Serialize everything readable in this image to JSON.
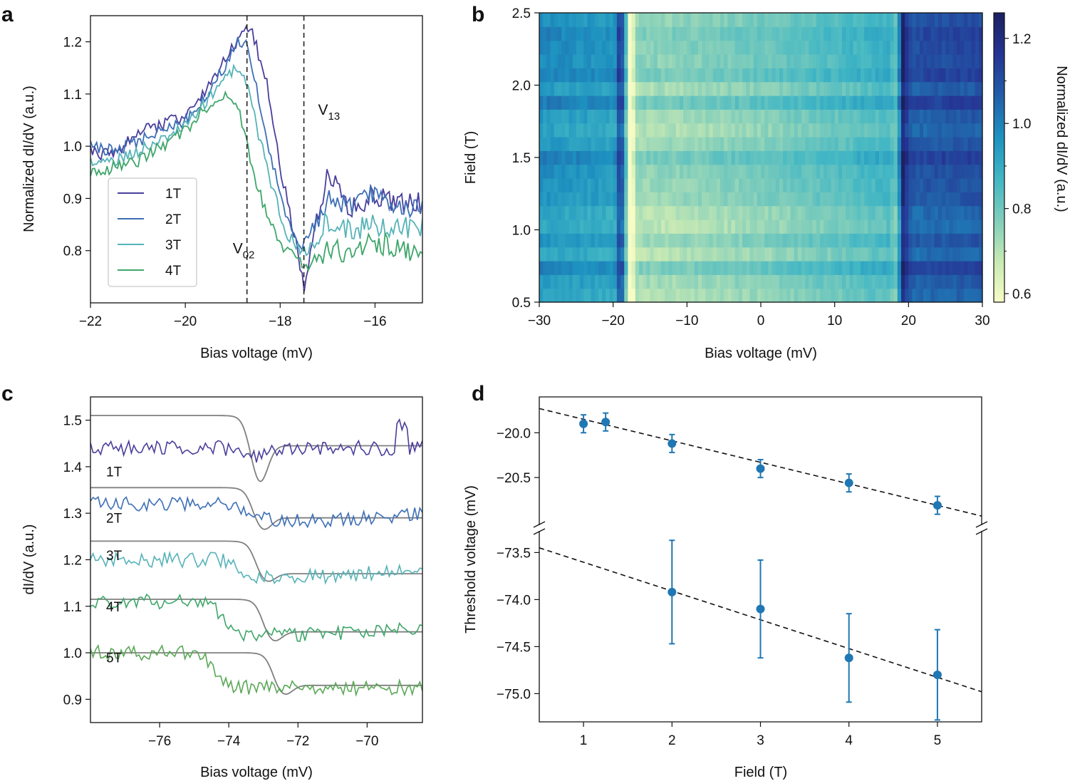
{
  "chart_data": [
    {
      "panel": "a",
      "type": "line",
      "xlabel": "Bias voltage (mV)",
      "ylabel": "Normalized dI/dV (a.u.)",
      "xlim": [
        -22,
        -15
      ],
      "ylim": [
        0.7,
        1.25
      ],
      "xticks": [
        -22,
        -20,
        -18,
        -16
      ],
      "yticks": [
        0.8,
        0.9,
        1.0,
        1.1,
        1.2
      ],
      "vlines": [
        -18.7,
        -17.5
      ],
      "annotations": [
        {
          "main": "V",
          "sub": "02",
          "x": -19.0,
          "y": 0.795
        },
        {
          "main": "V",
          "sub": "13",
          "x": -17.2,
          "y": 1.06
        }
      ],
      "legend": {
        "location": "lower-left",
        "entries": [
          "1T",
          "2T",
          "3T",
          "4T"
        ]
      },
      "series": [
        {
          "name": "1T",
          "color": "#4a3f9c",
          "x": [
            -22,
            -21.5,
            -21,
            -20.5,
            -20,
            -19.6,
            -19.2,
            -18.9,
            -18.7,
            -18.6,
            -18.3,
            -18.0,
            -17.7,
            -17.5,
            -17.3,
            -17.0,
            -16.5,
            -16.0,
            -15.5,
            -15.0
          ],
          "y": [
            0.99,
            0.98,
            1.03,
            1.04,
            1.06,
            1.1,
            1.16,
            1.2,
            1.22,
            1.22,
            1.13,
            0.96,
            0.83,
            0.73,
            0.82,
            0.95,
            0.88,
            0.91,
            0.89,
            0.89
          ]
        },
        {
          "name": "2T",
          "color": "#3d6fb6",
          "x": [
            -22,
            -21.5,
            -21,
            -20.5,
            -20,
            -19.6,
            -19.2,
            -18.9,
            -18.7,
            -18.5,
            -18.2,
            -17.9,
            -17.6,
            -17.4,
            -17.0,
            -16.5,
            -16.0,
            -15.5,
            -15.0
          ],
          "y": [
            1.0,
            0.99,
            1.01,
            1.03,
            1.05,
            1.09,
            1.15,
            1.2,
            1.19,
            1.11,
            0.98,
            0.87,
            0.8,
            0.83,
            0.9,
            0.88,
            0.91,
            0.89,
            0.88
          ]
        },
        {
          "name": "3T",
          "color": "#56b3b8",
          "x": [
            -22,
            -21.5,
            -21,
            -20.5,
            -20,
            -19.6,
            -19.2,
            -18.9,
            -18.7,
            -18.5,
            -18.2,
            -17.9,
            -17.6,
            -17.4,
            -17.0,
            -16.5,
            -16.0,
            -15.5,
            -15.0
          ],
          "y": [
            0.97,
            0.97,
            0.99,
            1.01,
            1.04,
            1.08,
            1.13,
            1.15,
            1.12,
            1.04,
            0.93,
            0.84,
            0.8,
            0.8,
            0.86,
            0.84,
            0.85,
            0.84,
            0.85
          ]
        },
        {
          "name": "4T",
          "color": "#3fa66a",
          "x": [
            -22,
            -21.5,
            -21,
            -20.5,
            -20,
            -19.6,
            -19.2,
            -18.9,
            -18.7,
            -18.5,
            -18.2,
            -17.9,
            -17.6,
            -17.4,
            -17.0,
            -16.5,
            -16.0,
            -15.5,
            -15.0
          ],
          "y": [
            0.95,
            0.96,
            0.97,
            1.0,
            1.03,
            1.07,
            1.1,
            1.08,
            1.0,
            0.93,
            0.85,
            0.8,
            0.78,
            0.77,
            0.8,
            0.8,
            0.82,
            0.8,
            0.8
          ]
        }
      ]
    },
    {
      "panel": "b",
      "type": "heatmap",
      "xlabel": "Bias voltage (mV)",
      "ylabel": "Field (T)",
      "xlim": [
        -30,
        30
      ],
      "ylim": [
        0.5,
        2.5
      ],
      "xticks": [
        -30,
        -20,
        -10,
        0,
        10,
        20,
        30
      ],
      "yticks": [
        0.5,
        1.0,
        1.5,
        2.0,
        2.5
      ],
      "colorbar": {
        "label": "Normalized dI/dV (a.u.)",
        "range": [
          0.58,
          1.26
        ],
        "ticks": [
          0.6,
          0.8,
          1.0,
          1.2
        ],
        "colors": [
          "#f7fcc5",
          "#c7e9b4",
          "#7fcdbb",
          "#41b6c4",
          "#1d91c0",
          "#225ea8",
          "#253494",
          "#1b2060"
        ]
      },
      "features": [
        {
          "bias_mV": -18.8,
          "type": "peak",
          "value": 1.26
        },
        {
          "bias_mV": -17.6,
          "type": "dip",
          "value": 0.58
        },
        {
          "bias_mV": 18.1,
          "type": "dip",
          "value": 0.75
        },
        {
          "bias_mV": 19.2,
          "type": "peak",
          "value": 1.22
        }
      ]
    },
    {
      "panel": "c",
      "type": "line",
      "xlabel": "Bias voltage (mV)",
      "ylabel": "dI/dV (a.u.)",
      "xlim": [
        -78,
        -68.4
      ],
      "ylim": [
        0.85,
        1.55
      ],
      "xticks": [
        -76,
        -74,
        -72,
        -70
      ],
      "yticks": [
        0.9,
        1.0,
        1.1,
        1.2,
        1.3,
        1.4,
        1.5
      ],
      "trace_labels": [
        "1T",
        "2T",
        "3T",
        "4T",
        "5T"
      ],
      "fit_color": "#808080",
      "series": [
        {
          "name": "1T",
          "color": "#4a3f9c",
          "baseline": 1.44,
          "step_at": -73.2,
          "fit": {
            "left": 1.51,
            "min": 1.375,
            "min_at": -73.1,
            "right": 1.445
          }
        },
        {
          "name": "2T",
          "color": "#3d6fb6",
          "baseline": 1.32,
          "step_at": -73.5,
          "fit": {
            "left": 1.355,
            "min": 1.25,
            "min_at": -73.0,
            "right": 1.29
          }
        },
        {
          "name": "3T",
          "color": "#56b3b8",
          "baseline": 1.2,
          "step_at": -73.8,
          "fit": {
            "left": 1.24,
            "min": 1.145,
            "min_at": -72.9,
            "right": 1.17
          }
        },
        {
          "name": "4T",
          "color": "#3fa66a",
          "baseline": 1.11,
          "step_at": -74.2,
          "fit": {
            "left": 1.115,
            "min": 1.015,
            "min_at": -72.7,
            "right": 1.045
          }
        },
        {
          "name": "5T",
          "color": "#5aa856",
          "baseline": 1.0,
          "step_at": -74.4,
          "fit": {
            "left": 1.0,
            "min": 0.9,
            "min_at": -72.4,
            "right": 0.93
          }
        }
      ]
    },
    {
      "panel": "d",
      "type": "scatter",
      "xlabel": "Field (T)",
      "ylabel": "Threshold voltage (mV)",
      "xlim": [
        0.5,
        5.5
      ],
      "xticks": [
        1,
        2,
        3,
        4,
        5
      ],
      "broken_axis": true,
      "upper": {
        "ylim": [
          -21.0,
          -19.6
        ],
        "yticks": [
          -20.0,
          -20.5
        ],
        "points": [
          {
            "x": 1.0,
            "y": -19.9,
            "err": 0.1
          },
          {
            "x": 1.25,
            "y": -19.88,
            "err": 0.1
          },
          {
            "x": 2.0,
            "y": -20.12,
            "err": 0.1
          },
          {
            "x": 3.0,
            "y": -20.4,
            "err": 0.1
          },
          {
            "x": 4.0,
            "y": -20.56,
            "err": 0.1
          },
          {
            "x": 5.0,
            "y": -20.81,
            "err": 0.1
          }
        ],
        "fit_line": [
          [
            0.5,
            -19.73
          ],
          [
            5.5,
            -20.93
          ]
        ]
      },
      "lower": {
        "ylim": [
          -75.3,
          -73.3
        ],
        "yticks": [
          -73.5,
          -74.0,
          -74.5,
          -75.0
        ],
        "points": [
          {
            "x": 2.0,
            "y": -73.92,
            "err": 0.55
          },
          {
            "x": 3.0,
            "y": -74.1,
            "err": 0.52
          },
          {
            "x": 4.0,
            "y": -74.62,
            "err": 0.47
          },
          {
            "x": 5.0,
            "y": -74.8,
            "err": 0.48
          }
        ],
        "fit_line": [
          [
            0.5,
            -73.45
          ],
          [
            5.5,
            -74.98
          ]
        ]
      },
      "marker_color": "#1f77b4"
    }
  ],
  "panel_labels": {
    "a": "a",
    "b": "b",
    "c": "c",
    "d": "d"
  },
  "text": {
    "a_xlabel": "Bias voltage (mV)",
    "a_ylabel": "Normalized dI/dV (a.u.)",
    "b_xlabel": "Bias voltage (mV)",
    "b_ylabel": "Field (T)",
    "b_cbar_label": "Normalized dI/dV (a.u.)",
    "c_xlabel": "Bias voltage (mV)",
    "c_ylabel": "dI/dV (a.u.)",
    "d_xlabel": "Field (T)",
    "d_ylabel": "Threshold voltage (mV)"
  }
}
